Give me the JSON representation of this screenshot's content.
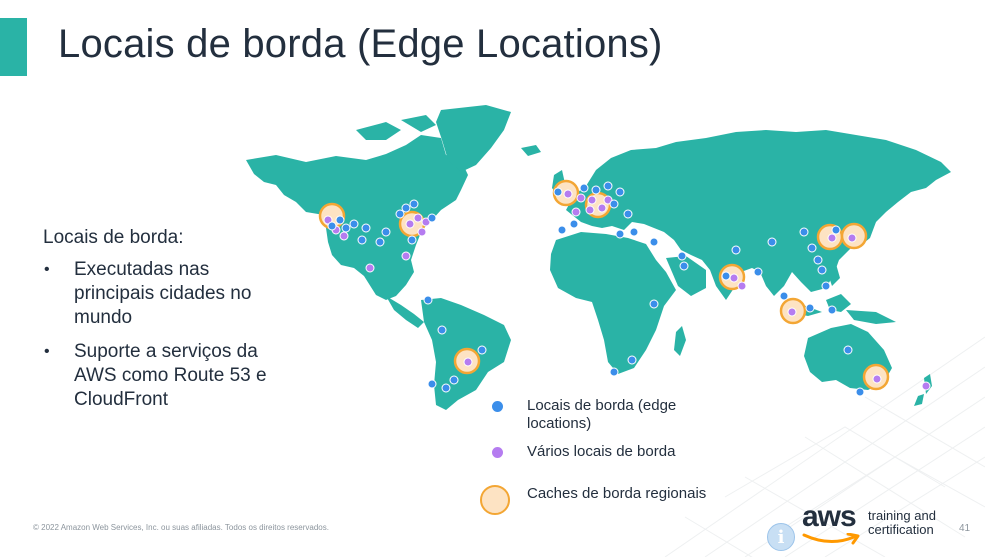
{
  "slide": {
    "title": "Locais de borda (Edge Locations)",
    "colors": {
      "accent": "#2ab3a6",
      "map": "#2ab3a6",
      "edge": "#3b8eea",
      "multi_edge": "#b57cf0",
      "cache_fill": "#fde3c3",
      "cache_ring": "#f3a634"
    }
  },
  "sidebar": {
    "heading": "Locais de borda:",
    "bullets": [
      "Executadas nas principais cidades no mundo",
      "Suporte a serviços da AWS como Route 53 e CloudFront"
    ]
  },
  "legend": {
    "edge": "Locais de borda (edge locations)",
    "multi": "Vários locais de borda",
    "cache": "Caches de borda regionais"
  },
  "footer": {
    "copyright": "© 2022 Amazon Web Services, Inc. ou suas afiliadas. Todos os direitos reservados.",
    "page_number": "41",
    "brand_word": "aws",
    "brand_line1": "training and",
    "brand_line2": "certification",
    "info_icon": "info-icon"
  }
}
